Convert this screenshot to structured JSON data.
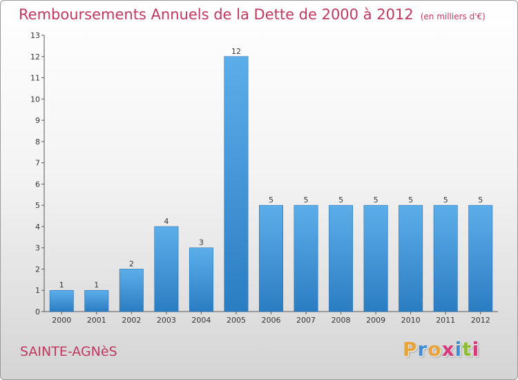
{
  "chart_data": {
    "type": "bar",
    "title": "Remboursements Annuels de la Dette de 2000 à 2012",
    "unit_note": "(en milliers d'€)",
    "categories": [
      "2000",
      "2001",
      "2002",
      "2003",
      "2004",
      "2005",
      "2006",
      "2007",
      "2008",
      "2009",
      "2010",
      "2011",
      "2012"
    ],
    "values": [
      1,
      1,
      2,
      4,
      3,
      12,
      5,
      5,
      5,
      5,
      5,
      5,
      5
    ],
    "ylim": [
      0,
      13
    ],
    "yticks": [
      0,
      1,
      2,
      3,
      4,
      5,
      6,
      7,
      8,
      9,
      10,
      11,
      12,
      13
    ],
    "xlabel": "",
    "ylabel": "",
    "grid": false,
    "bar_color": "#3f97dc"
  },
  "footer": {
    "commune": "SAINTE-AGNèS",
    "brand_letters": [
      "P",
      "r",
      "o",
      "x",
      "i",
      "t",
      "i"
    ],
    "brand_colors": [
      "#e8a33a",
      "#3c8ed8",
      "#e8a33a",
      "#d9397b",
      "#3c8ed8",
      "#8dbb35",
      "#d9397b"
    ]
  }
}
